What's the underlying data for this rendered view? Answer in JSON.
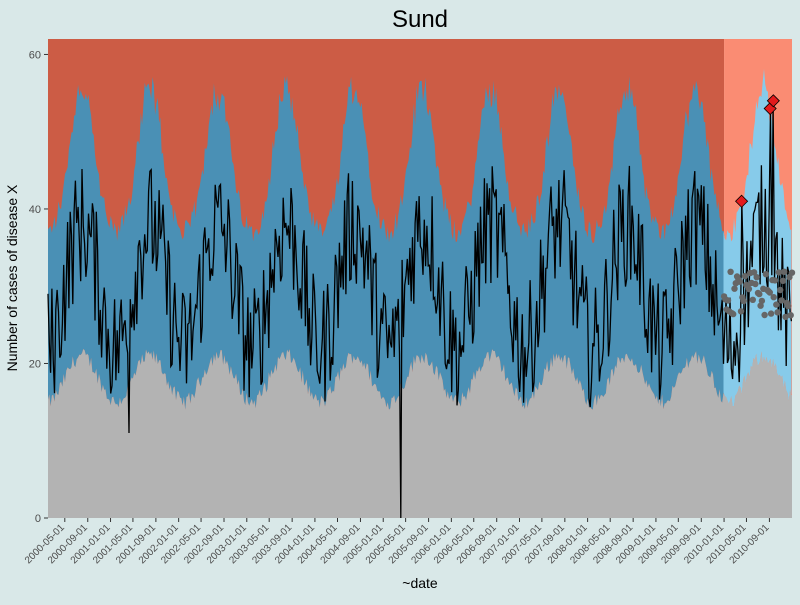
{
  "chart_data": {
    "type": "area",
    "title": "Sund",
    "xlabel": "~date",
    "ylabel": "Number of cases of disease X",
    "x_range": [
      "2000-02-01",
      "2010-12-31"
    ],
    "ylim": [
      0,
      62
    ],
    "y_ticks": [
      0,
      20,
      40,
      60
    ],
    "x_ticks": [
      "2000-05-01",
      "2000-09-01",
      "2001-01-01",
      "2001-05-01",
      "2001-09-01",
      "2002-01-01",
      "2002-05-01",
      "2002-09-01",
      "2003-01-01",
      "2003-05-01",
      "2003-09-01",
      "2004-01-01",
      "2004-05-01",
      "2004-09-01",
      "2005-01-01",
      "2005-05-01",
      "2005-09-01",
      "2006-01-01",
      "2006-05-01",
      "2006-09-01",
      "2007-01-01",
      "2007-05-01",
      "2007-09-01",
      "2008-01-01",
      "2008-05-01",
      "2008-09-01",
      "2009-01-01",
      "2009-05-01",
      "2009-09-01",
      "2010-01-01",
      "2010-05-01",
      "2010-09-01"
    ],
    "grid": false,
    "legend": "none",
    "colors": {
      "background": "#d9e8e8",
      "lower_band": "#b3b3b3",
      "upper_region_history": "#cc5c45",
      "upper_region_current": "#fa8c73",
      "threshold_band_history": "#4a90b5",
      "threshold_band_current": "#87cbea",
      "observed_line": "#000000",
      "expected_points": "#666666",
      "alarm_points": "#e31a1c"
    },
    "current_period_start": "2010-01-01",
    "bands": {
      "lower_threshold_mean": 18,
      "lower_threshold_amplitude": 3,
      "upper_threshold_mean": 43,
      "upper_threshold_amplitude": 6,
      "seasonal_peak_month": 7
    },
    "series": [
      {
        "values_description_note": "",
        "observed": {
          "baseline": 30,
          "seasonal_amplitude": 8,
          "noise_range": 8,
          "min_point": {
            "date": "2005-04-08",
            "value": 0
          },
          "notable_lows": [
            {
              "date": "2001-04-10",
              "value": 11
            }
          ]
        },
        "expected_current": {
          "start": "2010-01-01",
          "end": "2010-12-31",
          "mean": 29,
          "range": [
            27,
            33
          ]
        },
        "alarms": [
          {
            "date": "2010-04-05",
            "value": 41
          },
          {
            "date": "2010-09-05",
            "value": 53
          },
          {
            "date": "2010-09-22",
            "value": 54
          }
        ]
      }
    ]
  }
}
